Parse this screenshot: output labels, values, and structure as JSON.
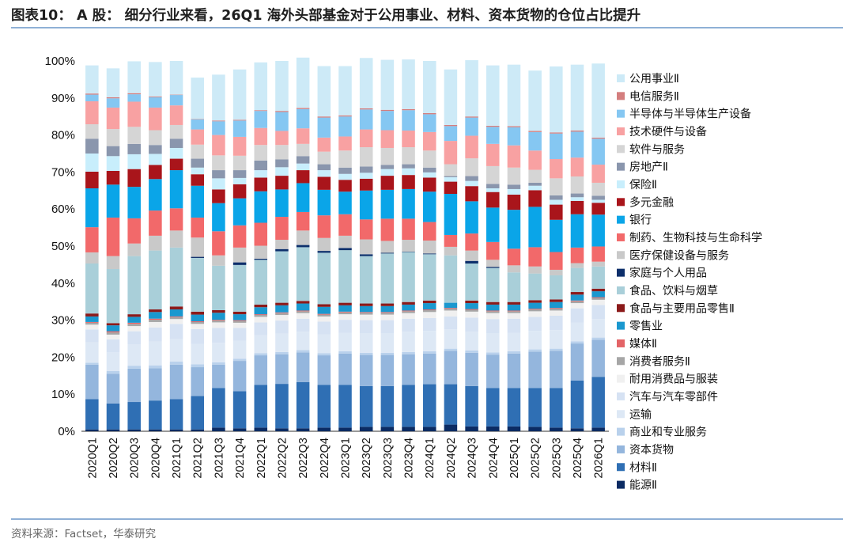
{
  "title": "图表10： A 股： 细分行业来看，26Q1 海外头部基金对于公用事业、材料、资本货物的仓位占比提升",
  "source": "资料来源：Factset，华泰研究",
  "chart_data": {
    "type": "bar",
    "stacked": true,
    "categories": [
      "2020Q1",
      "2020Q2",
      "2020Q3",
      "2020Q4",
      "2021Q1",
      "2021Q2",
      "2021Q3",
      "2021Q4",
      "2022Q1",
      "2022Q2",
      "2022Q3",
      "2022Q4",
      "2023Q1",
      "2023Q2",
      "2023Q3",
      "2023Q4",
      "2024Q1",
      "2024Q2",
      "2024Q3",
      "2024Q4",
      "2025Q1",
      "2025Q2",
      "2025Q3",
      "2025Q4",
      "2026Q1"
    ],
    "y_ticks": [
      "0%",
      "10%",
      "20%",
      "30%",
      "40%",
      "50%",
      "60%",
      "70%",
      "80%",
      "90%",
      "100%"
    ],
    "ylim": [
      0,
      100
    ],
    "legend_position": "right",
    "series": [
      {
        "name": "能源Ⅱ",
        "color": "#0b2b63",
        "values": [
          0.5,
          0.5,
          0.5,
          0.5,
          0.5,
          0.5,
          1.0,
          0.8,
          1.0,
          0.8,
          0.8,
          1.0,
          1.0,
          1.2,
          1.2,
          1.2,
          1.2,
          1.8,
          1.3,
          1.3,
          1.3,
          1.2,
          1.0,
          0.8,
          1.0
        ]
      },
      {
        "name": "材料Ⅱ",
        "color": "#2f6fb4",
        "values": [
          8.2,
          7.0,
          7.4,
          7.8,
          8.2,
          9.0,
          10.7,
          10.0,
          11.5,
          12.0,
          12.5,
          11.5,
          11.5,
          11.0,
          11.0,
          11.3,
          11.5,
          10.9,
          10.9,
          10.4,
          10.4,
          10.5,
          10.7,
          12.9,
          13.7
        ]
      },
      {
        "name": "资本货物",
        "color": "#94b6dd",
        "values": [
          9.3,
          8.0,
          9.0,
          8.7,
          9.3,
          7.8,
          6.3,
          8.2,
          8.0,
          8.0,
          8.0,
          8.0,
          8.5,
          8.4,
          8.4,
          8.3,
          8.3,
          9.0,
          9.0,
          9.0,
          9.3,
          9.8,
          10.0,
          10.0,
          10.0
        ]
      },
      {
        "name": "商业和专业服务",
        "color": "#b9d1ec",
        "values": [
          0.5,
          0.8,
          0.8,
          0.8,
          0.8,
          0.8,
          0.6,
          0.6,
          0.6,
          0.6,
          0.6,
          0.6,
          0.6,
          0.6,
          0.6,
          0.6,
          0.6,
          0.6,
          0.6,
          0.6,
          0.6,
          0.6,
          0.6,
          0.6,
          0.6
        ]
      },
      {
        "name": "运输",
        "color": "#dde8f5",
        "values": [
          5.5,
          5.0,
          5.8,
          6.4,
          6.2,
          5.5,
          5.3,
          4.8,
          4.8,
          5.0,
          5.0,
          5.0,
          5.0,
          5.3,
          5.3,
          5.5,
          5.5,
          5.2,
          5.1,
          5.2,
          5.0,
          5.0,
          5.0,
          5.0,
          5.0
        ]
      },
      {
        "name": "汽车与汽车零部件",
        "color": "#d6e2f3",
        "values": [
          3.5,
          3.5,
          3.5,
          3.8,
          4.0,
          4.0,
          4.0,
          3.5,
          3.5,
          3.5,
          3.5,
          3.5,
          3.5,
          3.5,
          3.5,
          3.5,
          3.5,
          3.5,
          3.8,
          3.8,
          3.8,
          3.8,
          3.9,
          3.9,
          3.8
        ]
      },
      {
        "name": "耐用消费品与服装",
        "color": "#f0f0f0",
        "values": [
          1.3,
          1.3,
          1.4,
          1.5,
          1.3,
          1.4,
          1.5,
          1.4,
          1.5,
          1.5,
          1.5,
          1.4,
          1.5,
          1.5,
          1.5,
          1.5,
          1.6,
          1.6,
          1.6,
          1.6,
          1.5,
          1.5,
          1.4,
          1.4,
          1.4
        ]
      },
      {
        "name": "消费者服务Ⅱ",
        "color": "#a6a6a6",
        "values": [
          0.5,
          0.6,
          0.6,
          0.6,
          0.5,
          0.5,
          0.5,
          0.5,
          0.5,
          0.5,
          0.5,
          0.5,
          0.5,
          0.5,
          0.5,
          0.5,
          0.5,
          0.5,
          0.5,
          0.5,
          0.5,
          0.5,
          0.5,
          0.5,
          0.5
        ]
      },
      {
        "name": "媒体Ⅱ",
        "color": "#e36467",
        "values": [
          0.2,
          0.3,
          0.3,
          0.3,
          0.2,
          0.2,
          0.2,
          0.2,
          0.2,
          0.2,
          0.2,
          0.2,
          0.2,
          0.2,
          0.2,
          0.2,
          0.2,
          0.2,
          0.2,
          0.2,
          0.2,
          0.2,
          0.2,
          0.2,
          0.2
        ]
      },
      {
        "name": "零售业",
        "color": "#1a98cf",
        "values": [
          1.5,
          1.6,
          1.6,
          1.8,
          1.9,
          1.8,
          1.9,
          1.6,
          1.9,
          1.9,
          1.9,
          1.9,
          1.7,
          1.6,
          1.6,
          1.6,
          1.7,
          1.4,
          1.6,
          1.6,
          1.6,
          1.6,
          1.6,
          1.6,
          1.6
        ]
      },
      {
        "name": "食品与主要用品零售Ⅱ",
        "color": "#8b1a1a",
        "values": [
          0.8,
          0.6,
          0.7,
          0.7,
          0.8,
          0.8,
          0.7,
          0.7,
          0.7,
          0.7,
          0.7,
          0.7,
          0.7,
          0.7,
          0.7,
          0.7,
          0.7,
          0.0,
          0.7,
          0.7,
          0.7,
          0.7,
          0.7,
          0.7,
          0.7
        ]
      },
      {
        "name": "食品、饮料与烟草",
        "color": "#a9cfd9",
        "values": [
          13.5,
          14.6,
          15.7,
          15.9,
          15.9,
          14.5,
          12.0,
          12.6,
          12.1,
          13.9,
          14.5,
          13.9,
          14.2,
          12.8,
          13.5,
          13.5,
          12.5,
          12.8,
          10.0,
          9.2,
          8.0,
          7.2,
          6.5,
          6.5,
          6.0
        ]
      },
      {
        "name": "家庭与个人用品",
        "color": "#0d2f6b",
        "values": [
          0.0,
          0.0,
          0.0,
          0.0,
          0.0,
          0.3,
          0.0,
          0.7,
          0.3,
          0.6,
          0.6,
          0.5,
          0.6,
          0.5,
          0.2,
          0.1,
          0.2,
          0.0,
          0.7,
          0.3,
          0.0,
          0.0,
          0.0,
          0.0,
          0.0
        ]
      },
      {
        "name": "医疗保健设备与服务",
        "color": "#c9c9c9",
        "values": [
          3.0,
          3.5,
          3.4,
          4.0,
          4.6,
          5.2,
          2.8,
          4.0,
          3.5,
          2.5,
          3.9,
          3.5,
          3.3,
          4.0,
          3.2,
          3.2,
          3.5,
          2.3,
          2.8,
          1.9,
          1.9,
          1.9,
          1.5,
          1.3,
          1.3
        ]
      },
      {
        "name": "制药、生物科技与生命科学",
        "color": "#f2696a",
        "values": [
          6.8,
          10.4,
          6.8,
          6.8,
          6.0,
          5.4,
          6.5,
          6.0,
          6.2,
          6.2,
          5.0,
          6.1,
          5.8,
          5.4,
          6.0,
          5.7,
          5.0,
          3.2,
          4.6,
          4.8,
          4.5,
          5.2,
          4.8,
          4.2,
          4.1
        ]
      },
      {
        "name": "银行",
        "color": "#0aa5e8",
        "values": [
          10.5,
          8.9,
          8.5,
          8.5,
          10.3,
          8.6,
          7.6,
          7.3,
          8.5,
          7.4,
          7.8,
          6.9,
          6.1,
          7.8,
          7.8,
          8.0,
          8.2,
          11.1,
          8.7,
          9.3,
          10.5,
          10.9,
          8.7,
          9.0,
          8.6
        ]
      },
      {
        "name": "多元金融",
        "color": "#a9151b",
        "values": [
          4.5,
          3.7,
          4.8,
          3.8,
          3.1,
          3.1,
          3.7,
          3.8,
          3.7,
          3.7,
          3.5,
          3.5,
          3.2,
          3.2,
          3.8,
          3.8,
          3.8,
          3.3,
          4.1,
          4.2,
          4.1,
          4.5,
          4.1,
          3.6,
          3.2
        ]
      },
      {
        "name": "保险Ⅱ",
        "color": "#c8eefc",
        "values": [
          4.9,
          4.0,
          4.0,
          3.0,
          2.9,
          1.8,
          3.0,
          1.7,
          2.0,
          2.3,
          1.8,
          1.8,
          1.6,
          1.6,
          1.8,
          1.8,
          1.4,
          1.2,
          1.4,
          1.0,
          1.5,
          1.2,
          1.3,
          1.0,
          0.8
        ]
      },
      {
        "name": "房地产Ⅱ",
        "color": "#8a96ad",
        "values": [
          4.0,
          2.7,
          2.8,
          2.4,
          2.5,
          2.4,
          2.2,
          2.1,
          2.6,
          2.1,
          2.0,
          1.6,
          1.7,
          1.7,
          1.1,
          1.1,
          1.3,
          0.3,
          1.3,
          1.2,
          1.2,
          0.8,
          1.2,
          1.0,
          1.1
        ]
      },
      {
        "name": "软件与服务",
        "color": "#d5d5d5",
        "values": [
          3.9,
          4.6,
          4.6,
          4.0,
          3.7,
          3.8,
          4.0,
          3.9,
          4.2,
          3.9,
          3.3,
          3.4,
          4.6,
          5.2,
          4.6,
          4.6,
          4.6,
          3.2,
          4.8,
          4.8,
          4.6,
          3.5,
          4.6,
          4.6,
          3.5
        ]
      },
      {
        "name": "技术硬件与设备",
        "color": "#f8a1a2",
        "values": [
          6.2,
          5.8,
          6.8,
          6.1,
          5.3,
          4.1,
          5.5,
          5.1,
          4.6,
          3.8,
          4.2,
          3.8,
          3.8,
          4.8,
          4.8,
          4.5,
          5.0,
          6.3,
          6.1,
          6.0,
          6.0,
          5.2,
          5.2,
          5.1,
          4.9
        ]
      },
      {
        "name": "半导体与半导体生产设备",
        "color": "#85c7f2",
        "values": [
          1.8,
          2.5,
          2.0,
          2.8,
          2.8,
          2.7,
          3.7,
          4.4,
          4.6,
          5.1,
          5.2,
          5.4,
          5.4,
          5.4,
          5.2,
          5.5,
          4.8,
          4.0,
          4.9,
          4.6,
          4.9,
          5.0,
          6.9,
          7.0,
          7.0
        ]
      },
      {
        "name": "电信服务Ⅱ",
        "color": "#d47e7e",
        "values": [
          0.3,
          0.3,
          0.3,
          0.2,
          0.1,
          0.1,
          0.2,
          0.2,
          0.2,
          0.3,
          0.3,
          0.3,
          0.3,
          0.3,
          0.3,
          0.3,
          0.3,
          0.3,
          0.3,
          0.3,
          0.3,
          0.3,
          0.3,
          0.3,
          0.3
        ]
      },
      {
        "name": "公用事业Ⅱ",
        "color": "#cdeaf7",
        "values": [
          7.6,
          7.8,
          8.6,
          9.3,
          9.1,
          11.2,
          12.4,
          13.6,
          12.9,
          13.5,
          13.6,
          13.6,
          13.3,
          13.6,
          13.5,
          13.4,
          14.1,
          15.0,
          15.2,
          16.3,
          16.6,
          16.3,
          17.8,
          17.8,
          20.0
        ]
      }
    ]
  }
}
